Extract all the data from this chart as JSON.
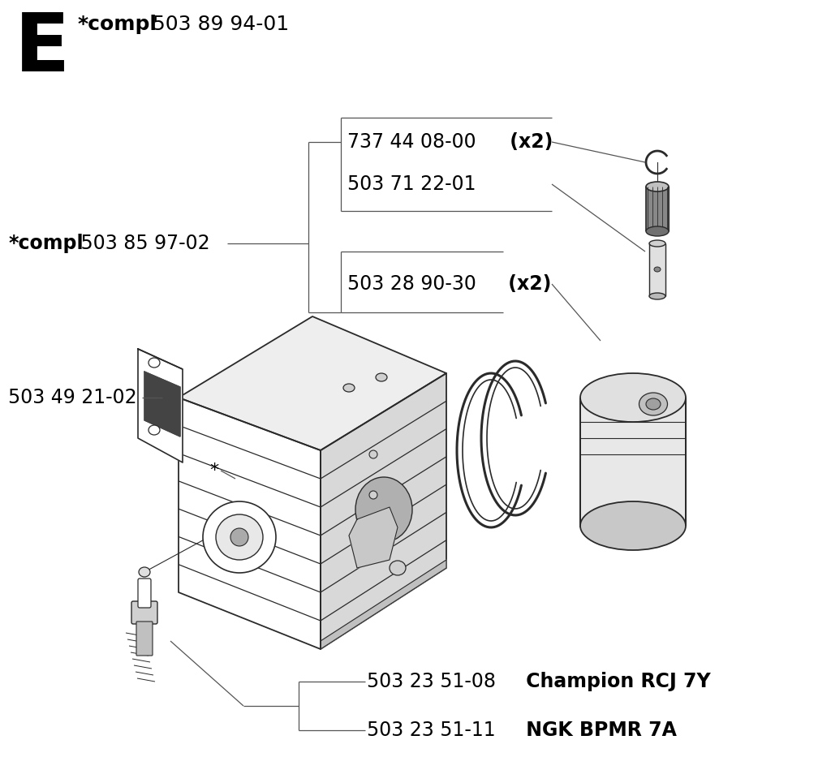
{
  "background_color": "#ffffff",
  "text_color": "#000000",
  "line_color": "#555555",
  "figsize": [
    10.24,
    9.49
  ],
  "dpi": 100,
  "title_letter": "E",
  "title_compl": "*compl",
  "title_number": " 503 89 94-01",
  "label_compl_bold": "*compl",
  "label_compl_normal": " 503 85 97-02",
  "label_part_4921": "503 49 21-02",
  "label_star": "*",
  "label_737_normal": "737 44 08-00",
  "label_737_bold": " (x2)",
  "label_503_71": "503 71 22-01",
  "label_503_28_normal": "503 28 90-30",
  "label_503_28_bold": " (x2)",
  "label_bot1_normal": "503 23 51-08",
  "label_bot1_bold": " Champion RCJ 7Y",
  "label_bot2_normal": "503 23 51-11",
  "label_bot2_bold": " NGK BPMR 7A",
  "dark_gray": "#2a2a2a",
  "mid_gray": "#888888",
  "light_gray": "#cccccc",
  "very_light_gray": "#eeeeee"
}
